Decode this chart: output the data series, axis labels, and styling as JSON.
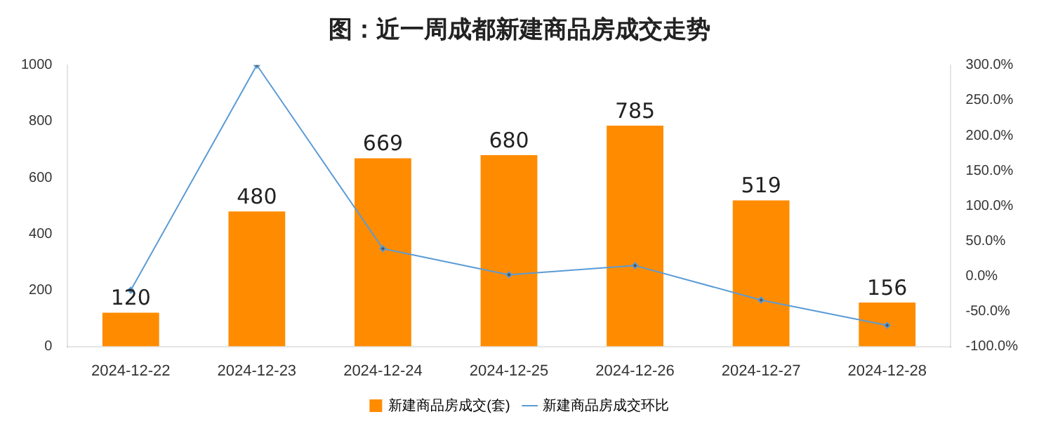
{
  "chart_data": {
    "type": "bar",
    "title": "图：近一周成都新建商品房成交走势",
    "categories": [
      "2024-12-22",
      "2024-12-23",
      "2024-12-24",
      "2024-12-25",
      "2024-12-26",
      "2024-12-27",
      "2024-12-28"
    ],
    "series": [
      {
        "name": "新建商品房成交(套)",
        "color": "#ff8c00",
        "values": [
          120,
          480,
          669,
          680,
          785,
          519,
          156
        ],
        "value_labels": [
          "120",
          "480",
          "669",
          "680",
          "785",
          "519",
          "156"
        ]
      },
      {
        "name": "新建商品房成交环比",
        "type": "line",
        "axis": "y2",
        "color": "#5b9bd5",
        "values": [
          -20,
          300,
          39,
          2,
          15,
          -34,
          -70
        ],
        "marker": "diamond"
      }
    ],
    "ylim": [
      0,
      1000
    ],
    "yticks": [
      0,
      200,
      400,
      600,
      800,
      1000
    ],
    "y2lim": [
      -100,
      300
    ],
    "y2ticks": [
      {
        "value": -100,
        "label": "-100.0%"
      },
      {
        "value": -50,
        "label": "-50.0%"
      },
      {
        "value": 0,
        "label": "0.0%"
      },
      {
        "value": 50,
        "label": "50.0%"
      },
      {
        "value": 100,
        "label": "100.0%"
      },
      {
        "value": 150,
        "label": "150.0%"
      },
      {
        "value": 200,
        "label": "200.0%"
      },
      {
        "value": 250,
        "label": "250.0%"
      },
      {
        "value": 300,
        "label": "300.0%"
      }
    ],
    "grid": false,
    "legend": "bottom"
  }
}
